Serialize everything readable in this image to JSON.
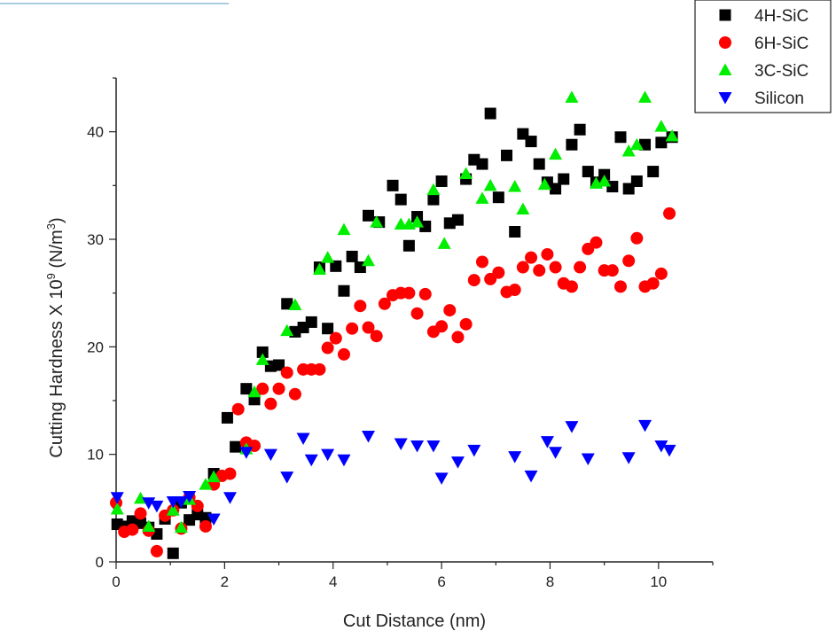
{
  "chart_data": {
    "type": "scatter",
    "xlabel": "Cut Distance (nm)",
    "ylabel_prefix": "Cutting Hardness X 10",
    "ylabel_exp": "9",
    "ylabel_unit_open": " (N/m",
    "ylabel_unit_exp": "3",
    "ylabel_unit_close": ")",
    "xlim": [
      0,
      11
    ],
    "ylim": [
      0,
      45
    ],
    "xticks": [
      "0",
      "2",
      "4",
      "6",
      "8",
      "10"
    ],
    "yticks": [
      "0",
      "10",
      "20",
      "30",
      "40"
    ],
    "legend_position": "top-right",
    "series": [
      {
        "name": "4H-SiC",
        "marker": "square",
        "color": "#000000",
        "points": [
          [
            0.02,
            3.5
          ],
          [
            0.15,
            3.3
          ],
          [
            0.3,
            3.8
          ],
          [
            0.45,
            3.6
          ],
          [
            0.6,
            3.2
          ],
          [
            0.75,
            2.6
          ],
          [
            0.9,
            4.0
          ],
          [
            1.05,
            0.8
          ],
          [
            1.2,
            5.5
          ],
          [
            1.35,
            3.9
          ],
          [
            1.5,
            4.4
          ],
          [
            1.65,
            4.1
          ],
          [
            1.8,
            8.2
          ],
          [
            2.05,
            13.4
          ],
          [
            2.2,
            10.7
          ],
          [
            2.4,
            16.1
          ],
          [
            2.55,
            15.1
          ],
          [
            2.7,
            19.5
          ],
          [
            2.85,
            18.2
          ],
          [
            3.0,
            18.3
          ],
          [
            3.15,
            24.0
          ],
          [
            3.3,
            21.4
          ],
          [
            3.45,
            21.8
          ],
          [
            3.6,
            22.3
          ],
          [
            3.75,
            27.4
          ],
          [
            3.9,
            21.7
          ],
          [
            4.05,
            27.5
          ],
          [
            4.2,
            25.2
          ],
          [
            4.35,
            28.4
          ],
          [
            4.5,
            27.4
          ],
          [
            4.65,
            32.2
          ],
          [
            4.85,
            31.6
          ],
          [
            5.1,
            35.0
          ],
          [
            5.25,
            33.7
          ],
          [
            5.4,
            29.4
          ],
          [
            5.55,
            32.1
          ],
          [
            5.7,
            31.2
          ],
          [
            5.85,
            33.7
          ],
          [
            6.0,
            35.4
          ],
          [
            6.15,
            31.5
          ],
          [
            6.3,
            31.8
          ],
          [
            6.45,
            35.6
          ],
          [
            6.6,
            37.4
          ],
          [
            6.75,
            37.0
          ],
          [
            6.9,
            41.7
          ],
          [
            7.05,
            33.9
          ],
          [
            7.2,
            37.8
          ],
          [
            7.35,
            30.7
          ],
          [
            7.5,
            39.8
          ],
          [
            7.65,
            39.1
          ],
          [
            7.8,
            37.0
          ],
          [
            7.95,
            35.3
          ],
          [
            8.1,
            34.7
          ],
          [
            8.25,
            35.6
          ],
          [
            8.4,
            38.8
          ],
          [
            8.55,
            40.2
          ],
          [
            8.7,
            36.3
          ],
          [
            8.85,
            35.3
          ],
          [
            9.0,
            36.0
          ],
          [
            9.15,
            34.9
          ],
          [
            9.3,
            39.5
          ],
          [
            9.45,
            34.7
          ],
          [
            9.6,
            35.4
          ],
          [
            9.75,
            38.8
          ],
          [
            9.9,
            36.3
          ],
          [
            10.05,
            39.0
          ],
          [
            10.25,
            39.5
          ]
        ]
      },
      {
        "name": "6H-SiC",
        "marker": "circle",
        "color": "#ff0000",
        "points": [
          [
            0.0,
            5.5
          ],
          [
            0.15,
            2.8
          ],
          [
            0.3,
            3.0
          ],
          [
            0.45,
            4.5
          ],
          [
            0.6,
            2.9
          ],
          [
            0.75,
            1.0
          ],
          [
            0.9,
            4.3
          ],
          [
            1.05,
            4.8
          ],
          [
            1.2,
            3.1
          ],
          [
            1.35,
            6.0
          ],
          [
            1.5,
            5.2
          ],
          [
            1.65,
            3.3
          ],
          [
            1.8,
            7.2
          ],
          [
            1.95,
            8.0
          ],
          [
            2.1,
            8.2
          ],
          [
            2.25,
            14.2
          ],
          [
            2.4,
            11.1
          ],
          [
            2.55,
            10.8
          ],
          [
            2.7,
            16.1
          ],
          [
            2.85,
            14.7
          ],
          [
            3.0,
            16.1
          ],
          [
            3.15,
            17.6
          ],
          [
            3.3,
            15.6
          ],
          [
            3.45,
            17.9
          ],
          [
            3.6,
            17.9
          ],
          [
            3.75,
            17.9
          ],
          [
            3.9,
            19.9
          ],
          [
            4.05,
            20.8
          ],
          [
            4.2,
            19.3
          ],
          [
            4.35,
            21.7
          ],
          [
            4.5,
            23.8
          ],
          [
            4.65,
            21.8
          ],
          [
            4.8,
            21.0
          ],
          [
            4.95,
            24.0
          ],
          [
            5.1,
            24.8
          ],
          [
            5.25,
            25.0
          ],
          [
            5.4,
            25.0
          ],
          [
            5.55,
            23.1
          ],
          [
            5.7,
            24.9
          ],
          [
            5.85,
            21.4
          ],
          [
            6.0,
            21.9
          ],
          [
            6.15,
            23.4
          ],
          [
            6.3,
            20.9
          ],
          [
            6.45,
            22.1
          ],
          [
            6.6,
            26.2
          ],
          [
            6.75,
            27.9
          ],
          [
            6.9,
            26.3
          ],
          [
            7.05,
            26.9
          ],
          [
            7.2,
            25.1
          ],
          [
            7.35,
            25.3
          ],
          [
            7.5,
            27.4
          ],
          [
            7.65,
            28.3
          ],
          [
            7.8,
            27.1
          ],
          [
            7.95,
            28.6
          ],
          [
            8.1,
            27.4
          ],
          [
            8.25,
            25.9
          ],
          [
            8.4,
            25.6
          ],
          [
            8.55,
            27.4
          ],
          [
            8.7,
            29.1
          ],
          [
            8.85,
            29.7
          ],
          [
            9.0,
            27.1
          ],
          [
            9.15,
            27.1
          ],
          [
            9.3,
            25.6
          ],
          [
            9.45,
            28.0
          ],
          [
            9.6,
            30.1
          ],
          [
            9.75,
            25.6
          ],
          [
            9.9,
            25.9
          ],
          [
            10.05,
            26.8
          ],
          [
            10.2,
            32.4
          ]
        ]
      },
      {
        "name": "3C-SiC",
        "marker": "triangle-up",
        "color": "#00ee00",
        "points": [
          [
            0.02,
            4.9
          ],
          [
            0.45,
            5.9
          ],
          [
            0.6,
            3.3
          ],
          [
            1.2,
            3.2
          ],
          [
            1.05,
            4.8
          ],
          [
            1.35,
            5.8
          ],
          [
            1.65,
            7.2
          ],
          [
            1.8,
            7.9
          ],
          [
            2.4,
            10.5
          ],
          [
            2.55,
            15.8
          ],
          [
            2.7,
            18.8
          ],
          [
            3.15,
            21.5
          ],
          [
            3.3,
            23.9
          ],
          [
            3.75,
            27.2
          ],
          [
            3.9,
            28.3
          ],
          [
            4.2,
            30.9
          ],
          [
            4.65,
            28.0
          ],
          [
            4.8,
            31.6
          ],
          [
            5.25,
            31.4
          ],
          [
            5.4,
            31.4
          ],
          [
            5.55,
            31.6
          ],
          [
            5.85,
            34.6
          ],
          [
            6.05,
            29.6
          ],
          [
            6.45,
            36.1
          ],
          [
            6.75,
            33.8
          ],
          [
            6.9,
            35.0
          ],
          [
            7.35,
            34.9
          ],
          [
            7.5,
            32.8
          ],
          [
            7.9,
            35.1
          ],
          [
            8.1,
            37.9
          ],
          [
            8.4,
            43.2
          ],
          [
            8.85,
            35.2
          ],
          [
            9.0,
            35.4
          ],
          [
            9.45,
            38.2
          ],
          [
            9.6,
            38.8
          ],
          [
            9.75,
            43.2
          ],
          [
            10.05,
            40.5
          ],
          [
            10.25,
            39.6
          ]
        ]
      },
      {
        "name": "Silicon",
        "marker": "triangle-down",
        "color": "#0000ff",
        "points": [
          [
            0.02,
            6.0
          ],
          [
            0.6,
            5.5
          ],
          [
            0.75,
            5.2
          ],
          [
            1.05,
            5.6
          ],
          [
            1.2,
            5.6
          ],
          [
            1.35,
            6.1
          ],
          [
            1.8,
            4.0
          ],
          [
            2.1,
            6.0
          ],
          [
            2.4,
            10.2
          ],
          [
            2.85,
            10.0
          ],
          [
            3.15,
            7.9
          ],
          [
            3.45,
            11.5
          ],
          [
            3.6,
            9.5
          ],
          [
            3.9,
            10.0
          ],
          [
            4.2,
            9.5
          ],
          [
            4.65,
            11.7
          ],
          [
            5.25,
            11.0
          ],
          [
            5.55,
            10.8
          ],
          [
            5.85,
            10.8
          ],
          [
            6.0,
            7.8
          ],
          [
            6.3,
            9.3
          ],
          [
            6.6,
            10.4
          ],
          [
            7.35,
            9.8
          ],
          [
            7.65,
            8.0
          ],
          [
            7.95,
            11.2
          ],
          [
            8.1,
            10.2
          ],
          [
            8.4,
            12.6
          ],
          [
            8.7,
            9.6
          ],
          [
            9.45,
            9.7
          ],
          [
            9.75,
            12.7
          ],
          [
            10.05,
            10.8
          ],
          [
            10.2,
            10.4
          ]
        ]
      }
    ]
  }
}
